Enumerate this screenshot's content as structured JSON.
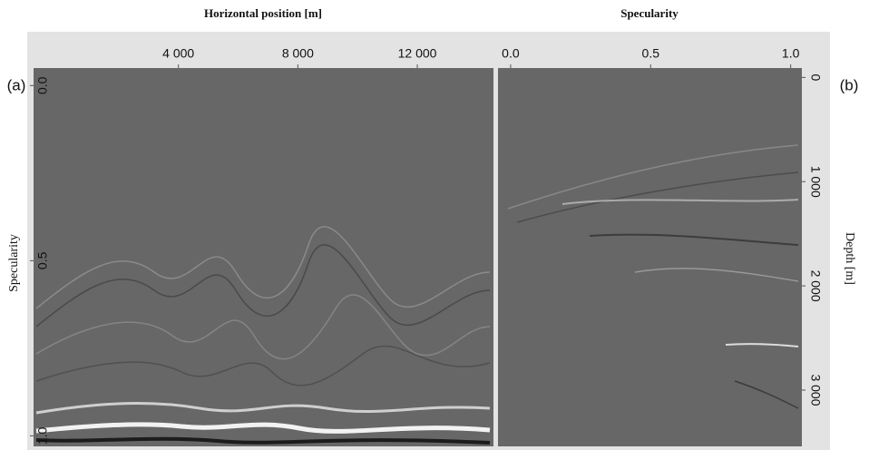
{
  "figure": {
    "panels": [
      {
        "label": "(a)",
        "title": "Horizontal position [m]",
        "x_axis": {
          "lim": [
            -850,
            14550
          ],
          "ticks": [
            {
              "value": 4000,
              "label": "4 000"
            },
            {
              "value": 8000,
              "label": "8 000"
            },
            {
              "value": 12000,
              "label": "12 000"
            }
          ]
        },
        "y_axis": {
          "title": "Specularity",
          "lim": [
            -0.05,
            1.03
          ],
          "ticks": [
            {
              "value": 0,
              "label": "0.0"
            },
            0.5,
            {
              "value": 1,
              "label": "1.0"
            }
          ]
        }
      },
      {
        "label": "(b)",
        "title": "Specularity",
        "x_axis": {
          "lim": [
            -0.045,
            1.04
          ],
          "ticks": [
            {
              "value": 0,
              "label": "0.0"
            },
            0.5,
            {
              "value": 1,
              "label": "1.0"
            }
          ]
        },
        "y_axis": {
          "title": "Depth [m]",
          "lim": [
            -90,
            3540
          ],
          "ticks": [
            0,
            {
              "value": 1000,
              "label": "1 000"
            },
            {
              "value": 2000,
              "label": "2 000"
            },
            {
              "value": 3000,
              "label": "3 000"
            }
          ]
        }
      }
    ]
  }
}
